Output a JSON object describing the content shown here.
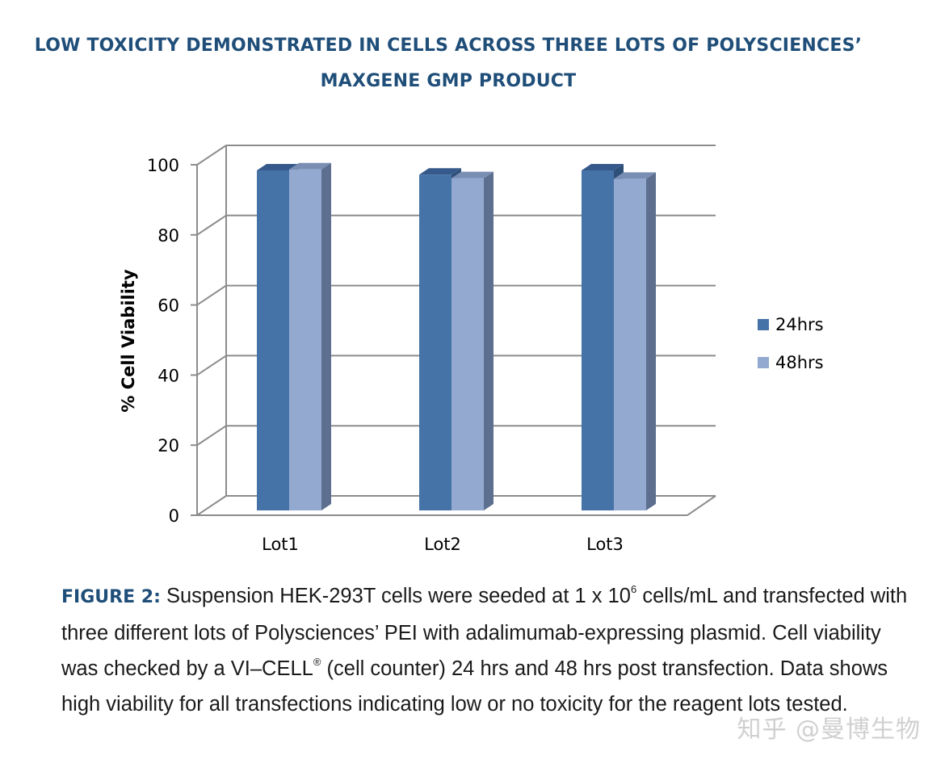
{
  "header": {
    "title_line1": "LOW TOXICITY DEMONSTRATED IN CELLS ACROSS THREE LOTS OF POLYSCIENCES’",
    "title_line2": "MAXGENE GMP PRODUCT"
  },
  "chart_data": {
    "type": "bar",
    "categories": [
      "Lot1",
      "Lot2",
      "Lot3"
    ],
    "series": [
      {
        "name": "24hrs",
        "values": [
          97,
          95.8,
          97
        ]
      },
      {
        "name": "48hrs",
        "values": [
          97.3,
          94.8,
          94.6
        ]
      }
    ],
    "ylabel": "% Cell Viability",
    "xlabel": "",
    "ylim": [
      0,
      100
    ],
    "yticks": [
      0,
      20,
      40,
      60,
      80,
      100
    ],
    "grid": true,
    "legend_position": "right",
    "colors": {
      "24hrs": "#4572a7",
      "48hrs": "#93a9cf",
      "24hrs_side": "#2e4f78",
      "48hrs_side": "#5c6f8f",
      "24hrs_top": "#35598a",
      "48hrs_top": "#7a8eb3",
      "grid": "#8c8c8c"
    }
  },
  "caption": {
    "label": "FIGURE 2:",
    "part1": " Suspension HEK-293T cells were seeded at 1 x 10",
    "sup1": "6",
    "part2": " cells/mL and transfected with  three different lots of Polysciences’ PEI with adalimumab-expressing plasmid. Cell viability was  checked by a VI–CELL",
    "sup2": "®",
    "part3": " (cell counter) 24 hrs and 48 hrs post transfection. Data shows high  viability for all transfections indicating low or no toxicity for the reagent lots tested."
  },
  "watermark": "知乎 @曼博生物"
}
